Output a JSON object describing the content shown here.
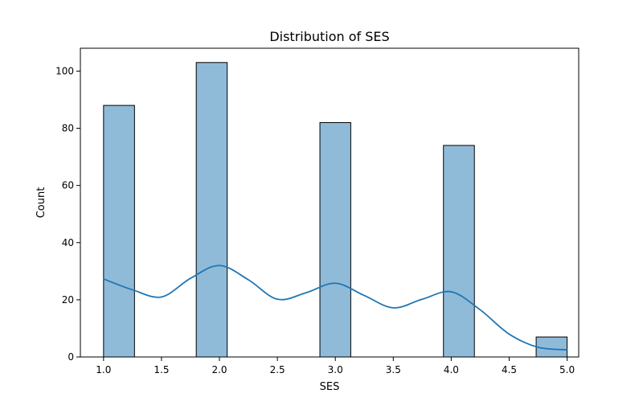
{
  "chart_data": {
    "type": "bar",
    "title": "Distribution of SES",
    "xlabel": "SES",
    "ylabel": "Count",
    "xlim": [
      0.8,
      5.1
    ],
    "ylim": [
      0,
      108
    ],
    "xticks": [
      "1.0",
      "1.5",
      "2.0",
      "2.5",
      "3.0",
      "3.5",
      "4.0",
      "4.5",
      "5.0"
    ],
    "yticks": [
      "0",
      "20",
      "40",
      "60",
      "80",
      "100"
    ],
    "bins": [
      {
        "x0": 1.0,
        "x1": 1.267,
        "count": 88
      },
      {
        "x0": 1.8,
        "x1": 2.067,
        "count": 103
      },
      {
        "x0": 2.867,
        "x1": 3.133,
        "count": 82
      },
      {
        "x0": 3.933,
        "x1": 4.2,
        "count": 74
      },
      {
        "x0": 4.733,
        "x1": 5.0,
        "count": 7
      }
    ],
    "kde": {
      "x": [
        1.0,
        1.25,
        1.5,
        1.75,
        2.0,
        2.25,
        2.5,
        2.75,
        3.0,
        3.25,
        3.5,
        3.75,
        4.0,
        4.25,
        4.5,
        4.75,
        5.0
      ],
      "y": [
        27.3,
        23.5,
        21.0,
        27.5,
        32.0,
        27.0,
        20.2,
        22.5,
        25.8,
        21.5,
        17.2,
        20.2,
        22.8,
        16.5,
        8.0,
        3.4,
        2.5
      ]
    },
    "colors": {
      "bar_fill": "#8fbbd9",
      "bar_edge": "#000000",
      "kde_line": "#1f77b4"
    },
    "grid": false
  }
}
